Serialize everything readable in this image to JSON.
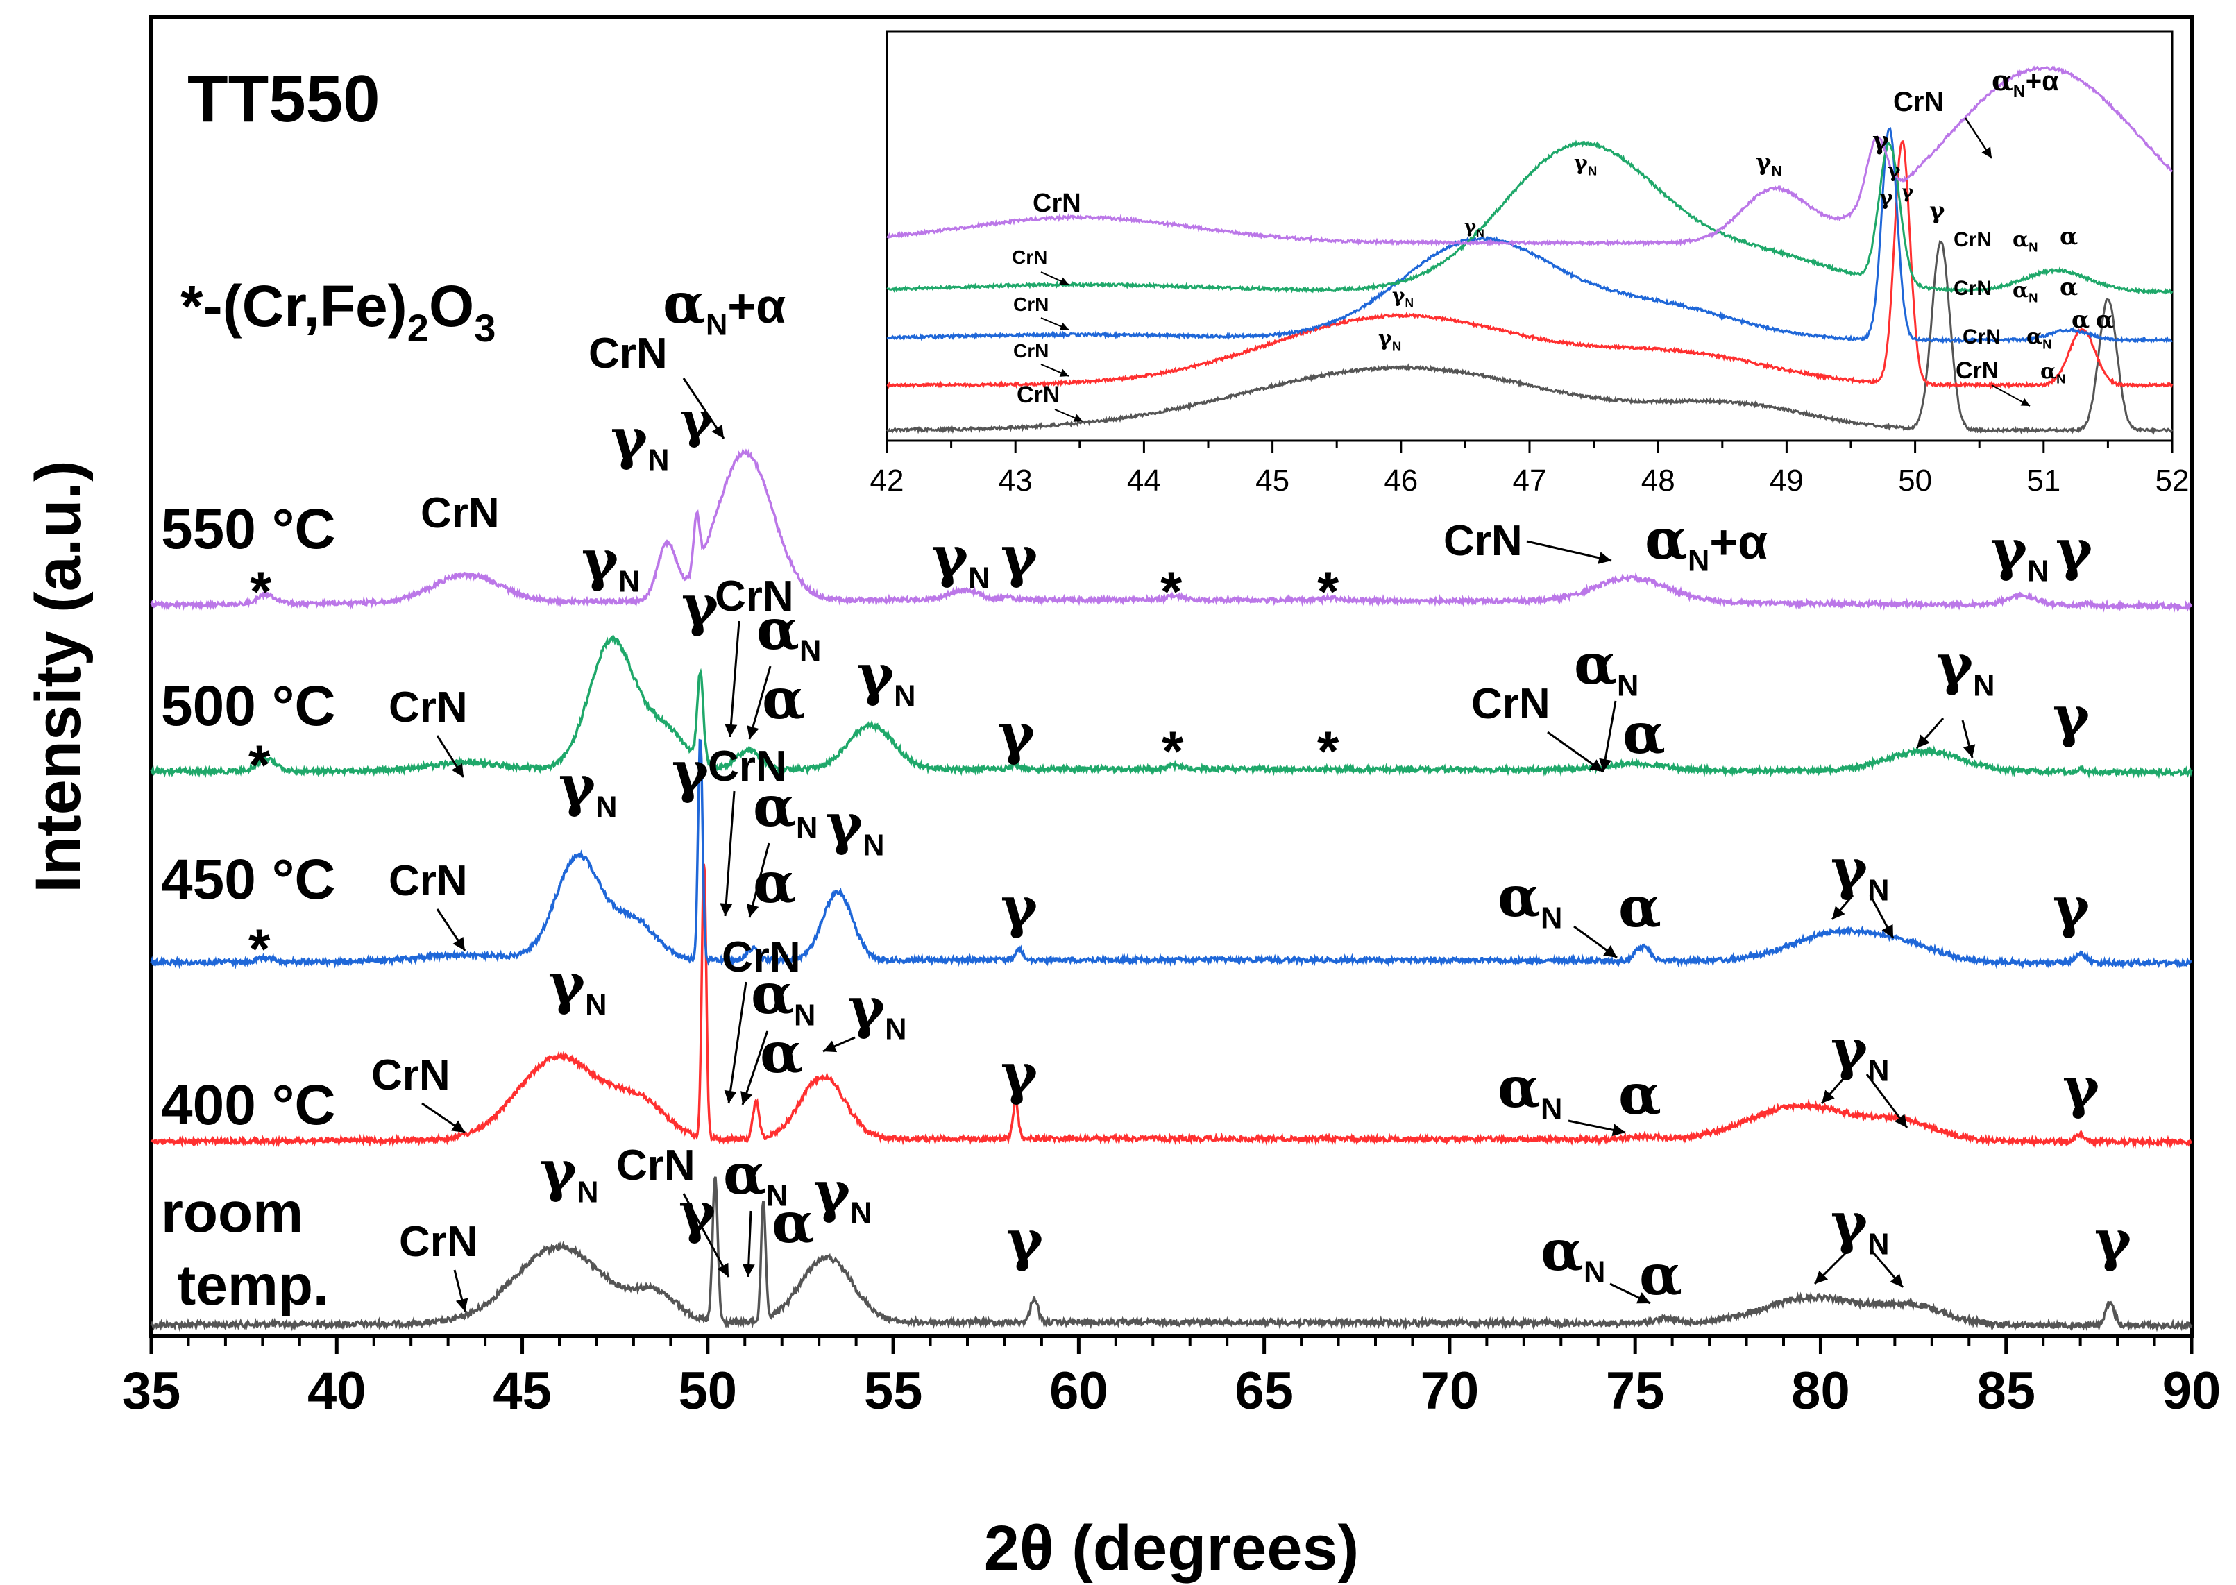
{
  "chart_data": {
    "type": "line",
    "title": "TT550",
    "legend_note": "*-(Cr,Fe)",
    "legend_note_sub": "2",
    "legend_note_o": "O",
    "legend_note_sub2": "3",
    "xlabel": "2θ (degrees)",
    "ylabel": "Intensity (a.u.)",
    "xlim": [
      35,
      90
    ],
    "xticks": [
      "35",
      "40",
      "45",
      "50",
      "55",
      "60",
      "65",
      "70",
      "75",
      "80",
      "85",
      "90"
    ],
    "series": [
      {
        "name": "room temp.",
        "label_line1": "room",
        "label_line2": "temp.",
        "color": "#555555",
        "peaks": [
          [
            46.0,
            1.0,
            1.2
          ],
          [
            48.6,
            0.35,
            0.6
          ],
          [
            50.2,
            1.9,
            0.07
          ],
          [
            51.5,
            1.55,
            0.06
          ],
          [
            53.2,
            0.85,
            0.7
          ],
          [
            58.8,
            0.32,
            0.1
          ],
          [
            75.8,
            0.06,
            0.3
          ],
          [
            79.8,
            0.35,
            1.3
          ],
          [
            82.5,
            0.22,
            0.9
          ],
          [
            87.8,
            0.28,
            0.12
          ]
        ]
      },
      {
        "name": "400 °C",
        "color": "#ff3030",
        "peaks": [
          [
            46.0,
            1.0,
            1.1
          ],
          [
            48.2,
            0.4,
            0.7
          ],
          [
            49.9,
            3.3,
            0.06
          ],
          [
            51.3,
            0.45,
            0.08
          ],
          [
            53.1,
            0.75,
            0.6
          ],
          [
            58.3,
            0.45,
            0.07
          ],
          [
            75.2,
            0.04,
            0.4
          ],
          [
            79.5,
            0.42,
            1.4
          ],
          [
            82.3,
            0.2,
            0.9
          ],
          [
            87.0,
            0.08,
            0.12
          ]
        ]
      },
      {
        "name": "450 °C",
        "color": "#1f67d8",
        "peaks": [
          [
            38.1,
            0.06,
            0.2
          ],
          [
            43.5,
            0.08,
            1.2
          ],
          [
            46.5,
            1.3,
            0.6
          ],
          [
            48.0,
            0.5,
            0.6
          ],
          [
            49.8,
            2.8,
            0.06
          ],
          [
            51.2,
            0.15,
            0.15
          ],
          [
            53.5,
            0.85,
            0.4
          ],
          [
            58.4,
            0.15,
            0.08
          ],
          [
            75.2,
            0.18,
            0.2
          ],
          [
            80.6,
            0.38,
            1.3
          ],
          [
            82.5,
            0.12,
            0.8
          ],
          [
            87.0,
            0.12,
            0.15
          ]
        ]
      },
      {
        "name": "500 °C",
        "color": "#1fa86a",
        "peaks": [
          [
            38.1,
            0.15,
            0.25
          ],
          [
            43.5,
            0.1,
            1.0
          ],
          [
            47.4,
            1.6,
            0.6
          ],
          [
            48.8,
            0.5,
            0.6
          ],
          [
            49.8,
            1.1,
            0.08
          ],
          [
            51.1,
            0.25,
            0.3
          ],
          [
            54.4,
            0.55,
            0.6
          ],
          [
            58.3,
            0.05,
            0.15
          ],
          [
            62.6,
            0.04,
            0.2
          ],
          [
            75.0,
            0.08,
            0.8
          ],
          [
            82.8,
            0.25,
            1.0
          ],
          [
            87.0,
            0.03,
            0.1
          ]
        ]
      },
      {
        "name": "550 °C",
        "color": "#bb77e8",
        "peaks": [
          [
            38.1,
            0.12,
            0.25
          ],
          [
            43.5,
            0.35,
            0.9
          ],
          [
            48.9,
            0.7,
            0.25
          ],
          [
            49.7,
            0.7,
            0.08
          ],
          [
            51.0,
            1.85,
            0.75
          ],
          [
            56.9,
            0.12,
            0.4
          ],
          [
            58.1,
            0.04,
            0.1
          ],
          [
            62.6,
            0.05,
            0.2
          ],
          [
            66.8,
            0.03,
            0.2
          ],
          [
            74.9,
            0.3,
            1.0
          ],
          [
            85.4,
            0.12,
            0.4
          ],
          [
            87.2,
            0.03,
            0.1
          ]
        ]
      }
    ],
    "annotations": {
      "crn": "CrN",
      "gamma": "γ",
      "gamma_n": "γ",
      "n_sub": "N",
      "alpha": "α",
      "alpha_n": "α",
      "alpha_n_plus_alpha": "+α",
      "star": "*"
    },
    "inset": {
      "xlim": [
        42,
        52
      ],
      "xticks": [
        "42",
        "43",
        "44",
        "45",
        "46",
        "47",
        "48",
        "49",
        "50",
        "51",
        "52"
      ],
      "series": [
        {
          "name": "room temp.",
          "color": "#555555",
          "peaks": [
            [
              46.0,
              1.0,
              1.2
            ],
            [
              48.6,
              0.35,
              0.6
            ],
            [
              50.2,
              3.0,
              0.07
            ],
            [
              51.5,
              2.1,
              0.07
            ]
          ]
        },
        {
          "name": "400 °C",
          "color": "#ff3030",
          "peaks": [
            [
              46.0,
              1.0,
              1.0
            ],
            [
              48.2,
              0.4,
              0.7
            ],
            [
              49.9,
              3.5,
              0.06
            ],
            [
              51.3,
              0.8,
              0.1
            ]
          ]
        },
        {
          "name": "450 °C",
          "color": "#1f67d8",
          "peaks": [
            [
              43.5,
              0.08,
              1.2
            ],
            [
              46.6,
              1.5,
              0.6
            ],
            [
              48.0,
              0.5,
              0.6
            ],
            [
              49.8,
              3.2,
              0.06
            ],
            [
              51.2,
              0.15,
              0.15
            ]
          ]
        },
        {
          "name": "500 °C",
          "color": "#1fa86a",
          "peaks": [
            [
              43.5,
              0.1,
              1.0
            ],
            [
              47.4,
              2.1,
              0.6
            ],
            [
              48.8,
              0.5,
              0.6
            ],
            [
              49.8,
              2.0,
              0.08
            ],
            [
              51.1,
              0.3,
              0.25
            ]
          ]
        },
        {
          "name": "550 °C",
          "color": "#bb77e8",
          "peaks": [
            [
              43.5,
              0.35,
              0.9
            ],
            [
              48.9,
              0.7,
              0.25
            ],
            [
              49.7,
              0.9,
              0.08
            ],
            [
              51.0,
              2.4,
              0.75
            ]
          ]
        }
      ]
    }
  }
}
